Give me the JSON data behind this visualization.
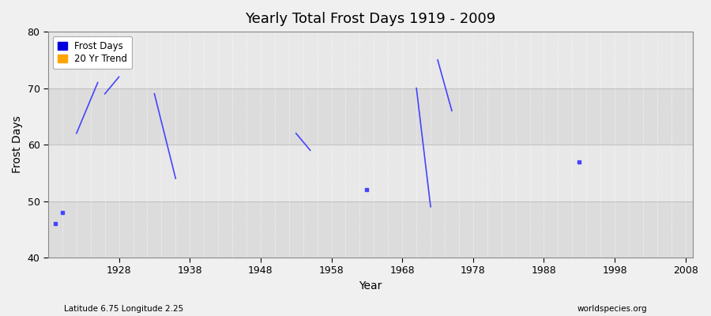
{
  "title": "Yearly Total Frost Days 1919 - 2009",
  "xlabel": "Year",
  "ylabel": "Frost Days",
  "subtitle_left": "Latitude 6.75 Longitude 2.25",
  "subtitle_right": "worldspecies.org",
  "xlim": [
    1918,
    2009
  ],
  "ylim": [
    40,
    80
  ],
  "xticks": [
    1928,
    1938,
    1948,
    1958,
    1968,
    1978,
    1988,
    1998,
    2008
  ],
  "yticks": [
    40,
    50,
    60,
    70,
    80
  ],
  "fig_bg_color": "#f0f0f0",
  "plot_bg_color": "#e8e8e8",
  "band_colors": [
    "#dcdcdc",
    "#e8e8e8"
  ],
  "line_color": "#4444ff",
  "legend_frost_color": "#0000dd",
  "legend_trend_color": "#ffa500",
  "connected_segments": [
    [
      [
        1922,
        62
      ],
      [
        1925,
        71
      ]
    ],
    [
      [
        1926,
        69
      ],
      [
        1928,
        72
      ]
    ],
    [
      [
        1933,
        69
      ],
      [
        1936,
        54
      ]
    ],
    [
      [
        1953,
        62
      ],
      [
        1955,
        59
      ]
    ],
    [
      [
        1970,
        70
      ],
      [
        1972,
        49
      ]
    ],
    [
      [
        1973,
        75
      ],
      [
        1975,
        66
      ]
    ]
  ],
  "isolated_points": [
    [
      1919,
      46
    ],
    [
      1920,
      48
    ],
    [
      1963,
      52
    ],
    [
      1993,
      57
    ]
  ]
}
